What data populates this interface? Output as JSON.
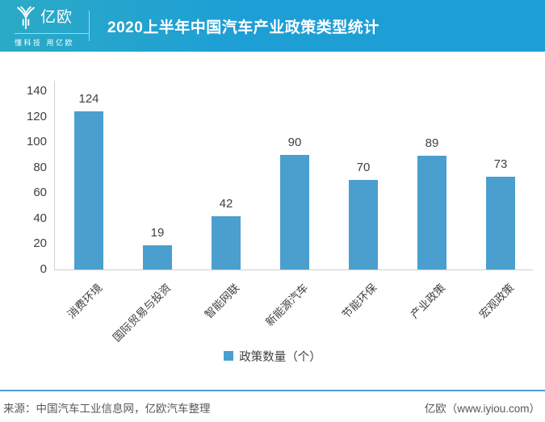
{
  "header": {
    "logo_text": "亿欧",
    "logo_tagline": "懂科技 用亿欧",
    "title": "2020上半年中国汽车产业政策类型统计"
  },
  "chart_data": {
    "type": "bar",
    "title": "2020上半年中国汽车产业政策类型统计",
    "categories": [
      "消费环境",
      "国际贸易与投资",
      "智能网联",
      "新能源汽车",
      "节能环保",
      "产业政策",
      "宏观政策"
    ],
    "values": [
      124,
      19,
      42,
      90,
      70,
      89,
      73
    ],
    "series_name": "政策数量（个）",
    "xlabel": "",
    "ylabel": "",
    "ylim": [
      0,
      140
    ],
    "y_ticks": [
      0,
      20,
      40,
      60,
      80,
      100,
      120,
      140
    ],
    "grid": false,
    "legend_position": "bottom",
    "bar_color": "#4b9fcf"
  },
  "legend": {
    "label": "政策数量（个）"
  },
  "footer": {
    "source": "来源：中国汽车工业信息网，亿欧汽车整理",
    "credit": "亿欧（www.iyiou.com）"
  },
  "colors": {
    "banner_left": "#2baac6",
    "banner_right": "#1d9fd6",
    "bar": "#4b9fcf",
    "axis_line": "#cfcfcf",
    "label_text": "#404040",
    "footer_text": "#595757",
    "footer_rule": "#4a9fd0"
  }
}
